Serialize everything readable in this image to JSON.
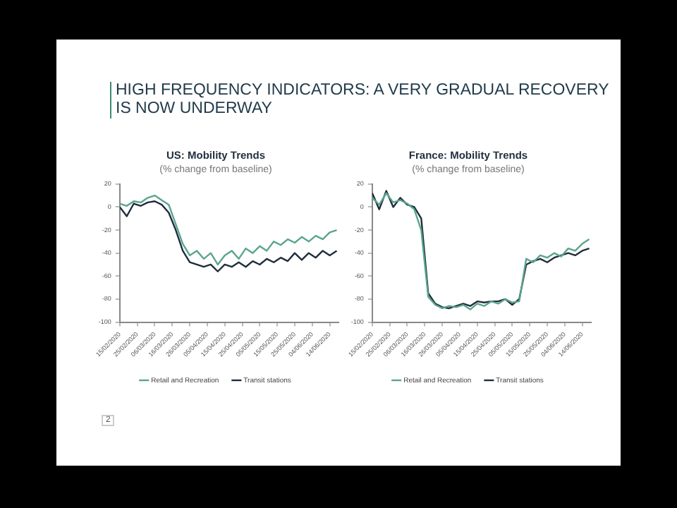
{
  "chart_data": [
    {
      "type": "line",
      "title": "US: Mobility Trends",
      "subtitle": "(% change from baseline)",
      "annotations": [
        "HIGH FREQUENCY INDICATORS: A VERY GRADUAL RECOVERY IS NOW UNDERWAY"
      ],
      "x": [
        "2020-02-15",
        "2020-02-19",
        "2020-02-23",
        "2020-02-27",
        "2020-03-02",
        "2020-03-06",
        "2020-03-10",
        "2020-03-14",
        "2020-03-18",
        "2020-03-22",
        "2020-03-26",
        "2020-03-30",
        "2020-04-03",
        "2020-04-07",
        "2020-04-11",
        "2020-04-15",
        "2020-04-19",
        "2020-04-23",
        "2020-04-27",
        "2020-05-01",
        "2020-05-05",
        "2020-05-09",
        "2020-05-13",
        "2020-05-17",
        "2020-05-21",
        "2020-05-25",
        "2020-05-29",
        "2020-06-02",
        "2020-06-06",
        "2020-06-10",
        "2020-06-14",
        "2020-06-18"
      ],
      "series": [
        {
          "name": "Retail and Recreation",
          "color": "#5aa58c",
          "values": [
            3,
            1,
            5,
            4,
            8,
            10,
            6,
            2,
            -15,
            -32,
            -42,
            -38,
            -45,
            -40,
            -50,
            -42,
            -38,
            -45,
            -36,
            -40,
            -34,
            -38,
            -30,
            -33,
            -28,
            -31,
            -26,
            -30,
            -25,
            -28,
            -22,
            -20
          ]
        },
        {
          "name": "Transit stations",
          "color": "#1f2d3d",
          "values": [
            0,
            -8,
            3,
            1,
            4,
            5,
            2,
            -5,
            -20,
            -38,
            -48,
            -50,
            -52,
            -50,
            -56,
            -50,
            -52,
            -48,
            -52,
            -47,
            -50,
            -45,
            -48,
            -44,
            -47,
            -40,
            -46,
            -40,
            -44,
            -38,
            -42,
            -38
          ]
        }
      ],
      "xlim": [
        "2020-02-15",
        "2020-06-19"
      ],
      "xticks": [
        {
          "value": "2020-02-15",
          "label": "15/02/2020"
        },
        {
          "value": "2020-02-25",
          "label": "25/02/2020"
        },
        {
          "value": "2020-03-06",
          "label": "06/03/2020"
        },
        {
          "value": "2020-03-16",
          "label": "16/03/2020"
        },
        {
          "value": "2020-03-26",
          "label": "26/03/2020"
        },
        {
          "value": "2020-04-05",
          "label": "05/04/2020"
        },
        {
          "value": "2020-04-15",
          "label": "15/04/2020"
        },
        {
          "value": "2020-04-25",
          "label": "25/04/2020"
        },
        {
          "value": "2020-05-05",
          "label": "05/05/2020"
        },
        {
          "value": "2020-05-15",
          "label": "15/05/2020"
        },
        {
          "value": "2020-05-25",
          "label": "25/05/2020"
        },
        {
          "value": "2020-06-04",
          "label": "04/06/2020"
        },
        {
          "value": "2020-06-14",
          "label": "14/06/2020"
        }
      ],
      "ylim": [
        -100,
        20
      ],
      "yticks": [
        -100,
        -80,
        -60,
        -40,
        -20,
        0,
        20
      ],
      "grid": false,
      "legend": "bottom",
      "marker": "none",
      "line_style": "solid"
    },
    {
      "type": "line",
      "title": "France: Mobility Trends",
      "subtitle": "(% change from baseline)",
      "annotations": [
        "2"
      ],
      "x": [
        "2020-02-15",
        "2020-02-19",
        "2020-02-23",
        "2020-02-27",
        "2020-03-02",
        "2020-03-06",
        "2020-03-10",
        "2020-03-14",
        "2020-03-18",
        "2020-03-22",
        "2020-03-26",
        "2020-03-30",
        "2020-04-03",
        "2020-04-07",
        "2020-04-11",
        "2020-04-15",
        "2020-04-19",
        "2020-04-23",
        "2020-04-27",
        "2020-05-01",
        "2020-05-05",
        "2020-05-09",
        "2020-05-13",
        "2020-05-17",
        "2020-05-21",
        "2020-05-25",
        "2020-05-29",
        "2020-06-02",
        "2020-06-06",
        "2020-06-10",
        "2020-06-14",
        "2020-06-18"
      ],
      "series": [
        {
          "name": "Retail and Recreation",
          "color": "#5aa58c",
          "values": [
            8,
            2,
            12,
            4,
            6,
            3,
            -2,
            -20,
            -78,
            -85,
            -88,
            -86,
            -87,
            -85,
            -89,
            -84,
            -86,
            -82,
            -84,
            -80,
            -83,
            -82,
            -45,
            -48,
            -42,
            -44,
            -40,
            -43,
            -36,
            -38,
            -32,
            -28
          ]
        },
        {
          "name": "Transit stations",
          "color": "#1f2d3d",
          "values": [
            12,
            -2,
            14,
            0,
            8,
            2,
            0,
            -10,
            -75,
            -84,
            -87,
            -88,
            -86,
            -84,
            -86,
            -82,
            -83,
            -82,
            -82,
            -80,
            -85,
            -80,
            -50,
            -47,
            -45,
            -48,
            -44,
            -42,
            -40,
            -42,
            -38,
            -36
          ]
        }
      ],
      "xlim": [
        "2020-02-15",
        "2020-06-19"
      ],
      "xticks": [
        {
          "value": "2020-02-15",
          "label": "15/02/2020"
        },
        {
          "value": "2020-02-25",
          "label": "25/02/2020"
        },
        {
          "value": "2020-03-06",
          "label": "06/03/2020"
        },
        {
          "value": "2020-03-16",
          "label": "16/03/2020"
        },
        {
          "value": "2020-03-26",
          "label": "26/03/2020"
        },
        {
          "value": "2020-04-05",
          "label": "05/04/2020"
        },
        {
          "value": "2020-04-15",
          "label": "15/04/2020"
        },
        {
          "value": "2020-04-25",
          "label": "25/04/2020"
        },
        {
          "value": "2020-05-05",
          "label": "05/05/2020"
        },
        {
          "value": "2020-05-15",
          "label": "15/05/2020"
        },
        {
          "value": "2020-05-25",
          "label": "25/05/2020"
        },
        {
          "value": "2020-06-04",
          "label": "04/06/2020"
        },
        {
          "value": "2020-06-14",
          "label": "14/06/2020"
        }
      ],
      "ylim": [
        -100,
        20
      ],
      "yticks": [
        -100,
        -80,
        -60,
        -40,
        -20,
        0,
        20
      ],
      "grid": false,
      "legend": "bottom",
      "marker": "none",
      "line_style": "solid"
    }
  ]
}
